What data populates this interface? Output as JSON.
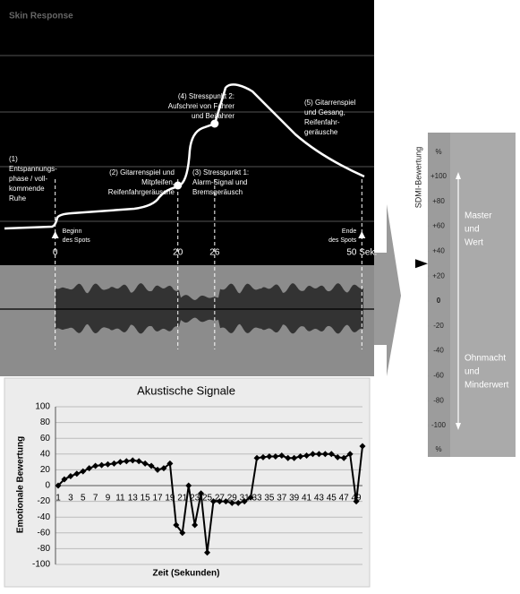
{
  "chart_data": [
    {
      "type": "timeline",
      "title": "Skin Response",
      "xlim": [
        -9,
        52
      ],
      "xticks": [
        0,
        20,
        26,
        {
          "value": 50,
          "label": "50 Sek."
        }
      ],
      "markers": [
        20,
        26
      ],
      "start_label": [
        "Beginn",
        "des Spots"
      ],
      "end_label": [
        "Ende",
        "des Spots"
      ],
      "annotations": [
        {
          "lines": [
            "(1)",
            "Entspannungs-",
            "phase / voll-",
            "kommende",
            "Ruhe"
          ]
        },
        {
          "lines": [
            "(2) Gitarrenspiel und",
            "Mitpfeifen,",
            "Reifenfahrgeräusche"
          ]
        },
        {
          "lines": [
            "(3) Stresspunkt 1:",
            "Alarm-Signal und",
            "Bremsgeräusch"
          ]
        },
        {
          "lines": [
            "(4) Stresspunkt 2:",
            "Aufschrei von Fahrer",
            "und Beifahrer"
          ]
        },
        {
          "lines": [
            "(5) Gitarrenspiel",
            "und Gesang,",
            "Reifenfahr-",
            "geräusche"
          ]
        }
      ]
    },
    {
      "type": "line",
      "title": "Akustische Signale",
      "xlabel": "Zeit (Sekunden)",
      "ylabel": "Emotionale Bewertung",
      "categories": [
        "1",
        null,
        "3",
        null,
        "5",
        null,
        "7",
        null,
        "9",
        null,
        "11",
        null,
        "13",
        null,
        "15",
        null,
        "17",
        null,
        "19",
        null,
        "21",
        null,
        "23",
        null,
        "25",
        null,
        "27",
        null,
        "29",
        null,
        "31",
        null,
        "33",
        null,
        "35",
        null,
        "37",
        null,
        "39",
        null,
        "41",
        null,
        "43",
        null,
        "45",
        null,
        "47",
        null,
        "49",
        null
      ],
      "series": [
        {
          "name": "Akustische Signale",
          "color": "#000000",
          "values": [
            0,
            8,
            12,
            15,
            18,
            22,
            25,
            26,
            27,
            28,
            30,
            31,
            32,
            31,
            28,
            25,
            20,
            22,
            28,
            -50,
            -60,
            0,
            -50,
            -10,
            -85,
            -20,
            -20,
            -20,
            -22,
            -22,
            -20,
            -15,
            35,
            36,
            37,
            37,
            38,
            35,
            35,
            37,
            38,
            40,
            40,
            40,
            40,
            36,
            35,
            40,
            -20,
            50
          ]
        }
      ],
      "ylim": [
        -100,
        100
      ],
      "yticks": [
        -100,
        -80,
        -60,
        -40,
        -20,
        0,
        20,
        40,
        60,
        80,
        100
      ],
      "grid": true
    },
    {
      "type": "scale",
      "axis_label": "SDMI-Bewertung",
      "unit_top": "%",
      "unit_bottom": "%",
      "ylim": [
        -100,
        100
      ],
      "yticks": [
        {
          "value": 100,
          "label": "+100"
        },
        {
          "value": 80,
          "label": "+80"
        },
        {
          "value": 60,
          "label": "+60"
        },
        {
          "value": 40,
          "label": "+40"
        },
        {
          "value": 20,
          "label": "+20"
        },
        0,
        -20,
        -40,
        -60,
        -80,
        -100
      ],
      "indicator": 30,
      "upper_label": [
        "Master",
        "und",
        "Wert"
      ],
      "lower_label": [
        "Ohnmacht",
        "und",
        "Minderwert"
      ]
    }
  ]
}
